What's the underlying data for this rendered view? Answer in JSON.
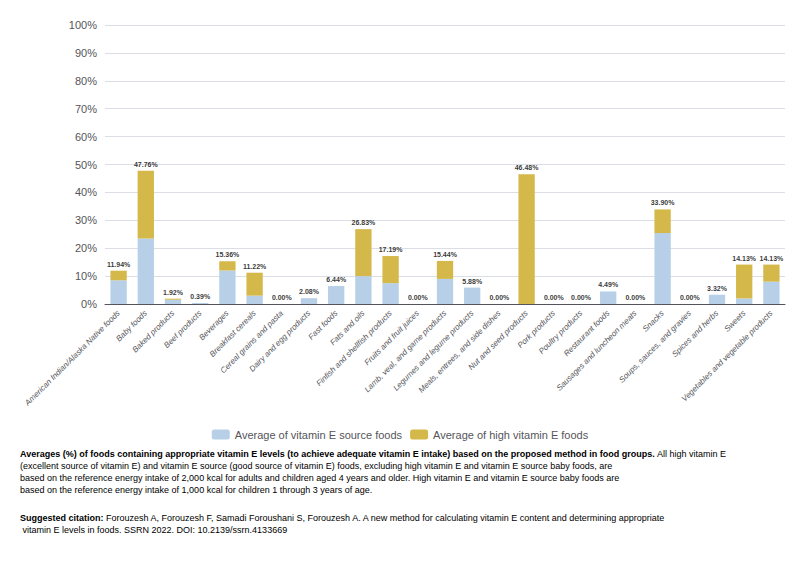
{
  "chart_data": {
    "type": "bar",
    "categories": [
      "American Indian/Alaska Native foods",
      "Baby foods",
      "Baked products",
      "Beef products",
      "Beverages",
      "Breakfast cereals",
      "Cereal grains and pasta",
      "Dairy and egg products",
      "Fast foods",
      "Fats and oils",
      "Finfish and shellfish products",
      "Fruits and fruit juices",
      "Lamb, veal, and game products",
      "Legumes and legume products",
      "Meals, entrees, and side dishes",
      "Nut and seed products",
      "Pork products",
      "Poultry products",
      "Restaurant foods",
      "Sausages and luncheon meats",
      "Snacks",
      "Soups, sauces, and gravies",
      "Spices and herbs",
      "Sweets",
      "Vegetables and vegetable products"
    ],
    "series": [
      {
        "name": "Average of vitamin E source foods",
        "color": "#b8cfe8",
        "values": [
          8.5,
          23.5,
          1.53,
          0.39,
          12.0,
          3.0,
          0.0,
          2.08,
          6.44,
          10.0,
          7.48,
          0.0,
          9.0,
          5.88,
          0.0,
          0.0,
          0.0,
          0.0,
          4.49,
          0.0,
          25.43,
          0.0,
          3.32,
          2.0,
          8.0
        ]
      },
      {
        "name": "Average of high vitamin E foods",
        "color": "#d4b84a",
        "values": [
          3.44,
          24.26,
          0.39,
          0.0,
          3.36,
          8.22,
          0.0,
          0.0,
          0.0,
          16.83,
          9.71,
          0.0,
          6.44,
          0.0,
          0.0,
          46.48,
          0.0,
          0.0,
          0.0,
          0.0,
          8.47,
          0.0,
          0.0,
          12.13,
          6.13
        ]
      }
    ],
    "stacked": true,
    "totals": [
      11.94,
      47.76,
      1.92,
      0.39,
      15.36,
      11.22,
      0.0,
      2.08,
      6.44,
      26.83,
      17.19,
      0.0,
      15.44,
      5.88,
      0.0,
      46.48,
      0.0,
      0.0,
      4.49,
      0.0,
      33.9,
      0.0,
      3.32,
      14.13,
      14.13
    ],
    "total_labels": [
      "11.94%",
      "47.76%",
      "1.92%",
      "0.39%",
      "15.36%",
      "11.22%",
      "0.00%",
      "2.08%",
      "6.44%",
      "26.83%",
      "17.19%",
      "0.00%",
      "15.44%",
      "5.88%",
      "0.00%",
      "46.48%",
      "0.00%",
      "0.00%",
      "4.49%",
      "0.00%",
      "33.90%",
      "0.00%",
      "3.32%",
      "14.13%",
      "14.13%"
    ],
    "ylim": [
      0,
      100
    ],
    "yticks": [
      {
        "value": 0,
        "label": "0%"
      },
      {
        "value": 10,
        "label": "10%"
      },
      {
        "value": 20,
        "label": "20%"
      },
      {
        "value": 30,
        "label": "30%"
      },
      {
        "value": 40,
        "label": "40%"
      },
      {
        "value": 50,
        "label": "50%"
      },
      {
        "value": 60,
        "label": "60%"
      },
      {
        "value": 70,
        "label": "70%"
      },
      {
        "value": 80,
        "label": "80%"
      },
      {
        "value": 90,
        "label": "90%"
      },
      {
        "value": 100,
        "label": "100%"
      }
    ],
    "grid": true,
    "legend": "bottom",
    "caption": {
      "label": "Averages (%) of foods containing appropriate vitamin E levels (to achieve adequate vitamin E intake) based on the proposed method in food groups.",
      "text": " All high vitamin E (excellent source of vitamin E) and vitamin E source (good source of vitamin E) foods, excluding high vitamin E and vitamin E source baby foods, are based on the reference energy intake of 2,000 kcal for adults and children aged 4 years and older. High vitamin E and vitamin E source baby foods are based on the reference energy intake of 1,000 kcal for children 1 through 3 years of age."
    },
    "citation": {
      "label": "Suggested citation:",
      "text": " Forouzesh A, Forouzesh F, Samadi Foroushani S, Forouzesh A. A new method for calculating vitamin E content and determining appropriate vitamin E levels in foods. SSRN 2022. DOI: 10.2139/ssrn.4133669"
    }
  }
}
